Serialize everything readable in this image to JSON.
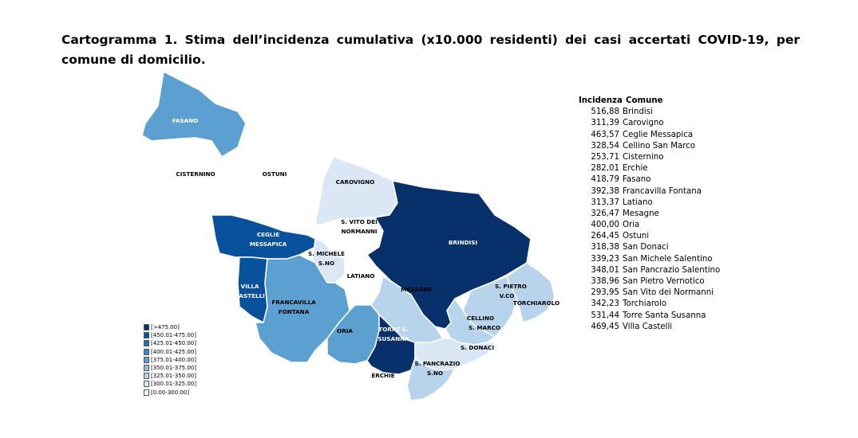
{
  "title": "Cartogramma 1. Stima dell’incidenza cumulativa (x10.000 residenti) dei casi accertati COVID-19, per comune di domicilio.",
  "legend": [
    {
      "label": "[>475.00]",
      "color": "#08306b"
    },
    {
      "label": "[450.01-475.00]",
      "color": "#08519c"
    },
    {
      "label": "[425.01-450.00]",
      "color": "#2171b5"
    },
    {
      "label": "[400.01-425.00]",
      "color": "#3d86c6"
    },
    {
      "label": "[375.01-400.00]",
      "color": "#5c9fd1"
    },
    {
      "label": "[350.01-375.00]",
      "color": "#8fbde0"
    },
    {
      "label": "[325.01-350.00]",
      "color": "#b7d4ec"
    },
    {
      "label": "[300.01-325.00]",
      "color": "#dbe7f5"
    },
    {
      "label": "[0.00-300.00]",
      "color": "#ffffff"
    }
  ],
  "table": {
    "header_value": "Incidenza",
    "header_name": "Comune",
    "rows": [
      {
        "value": "516,88",
        "name": "Brindisi"
      },
      {
        "value": "311,39",
        "name": "Carovigno"
      },
      {
        "value": "463,57",
        "name": "Ceglie Messapica"
      },
      {
        "value": "328,54",
        "name": "Cellino San Marco"
      },
      {
        "value": "253,71",
        "name": "Cisternino"
      },
      {
        "value": "282,01",
        "name": "Erchie"
      },
      {
        "value": "418,79",
        "name": "Fasano"
      },
      {
        "value": "392,38",
        "name": "Francavilla Fontana"
      },
      {
        "value": "313,37",
        "name": "Latiano"
      },
      {
        "value": "326,47",
        "name": "Mesagne"
      },
      {
        "value": "400,00",
        "name": "Oria"
      },
      {
        "value": "264,45",
        "name": "Ostuni"
      },
      {
        "value": "318,38",
        "name": "San Donaci"
      },
      {
        "value": "339,23",
        "name": "San Michele Salentino"
      },
      {
        "value": "348,01",
        "name": "San Pancrazio Salentino"
      },
      {
        "value": "338,96",
        "name": "San Pietro Vernotico"
      },
      {
        "value": "293,95",
        "name": "San Vito dei Normanni"
      },
      {
        "value": "342,23",
        "name": "Torchiarolo"
      },
      {
        "value": "531,44",
        "name": "Torre Santa Susanna"
      },
      {
        "value": "469,45",
        "name": "Villa Castelli"
      }
    ]
  },
  "map_labels": {
    "fasano": "FASANO",
    "cisternino": "CISTERNINO",
    "ostuni": "OSTUNI",
    "carovigno": "CAROVIGNO",
    "ceglie_1": "CEGLIE",
    "ceglie_2": "MESSAPICA",
    "svito_1": "S. VITO DEI",
    "svito_2": "NORMANNI",
    "brindisi": "BRINDISI",
    "smichele_1": "S. MICHELE",
    "smichele_2": "S.NO",
    "latiano": "LATIANO",
    "villa_1": "VILLA",
    "villa_2": "CASTELLI",
    "francavilla_1": "FRANCAVILLA",
    "francavilla_2": "FONTANA",
    "mesagne": "MESAGNE",
    "spietro_1": "S. PIETRO",
    "spietro_2": "V.CO",
    "torchiarolo": "TORCHIAROLO",
    "cellino_1": "CELLINO",
    "cellino_2": "S. MARCO",
    "oria": "ORIA",
    "torre_1": "TORRE S.",
    "torre_2": "SUSANNA",
    "sdonaci": "S. DONACI",
    "spancrazio_1": "S. PANCRAZIO",
    "spancrazio_2": "S.NO",
    "erchie": "ERCHIE"
  }
}
